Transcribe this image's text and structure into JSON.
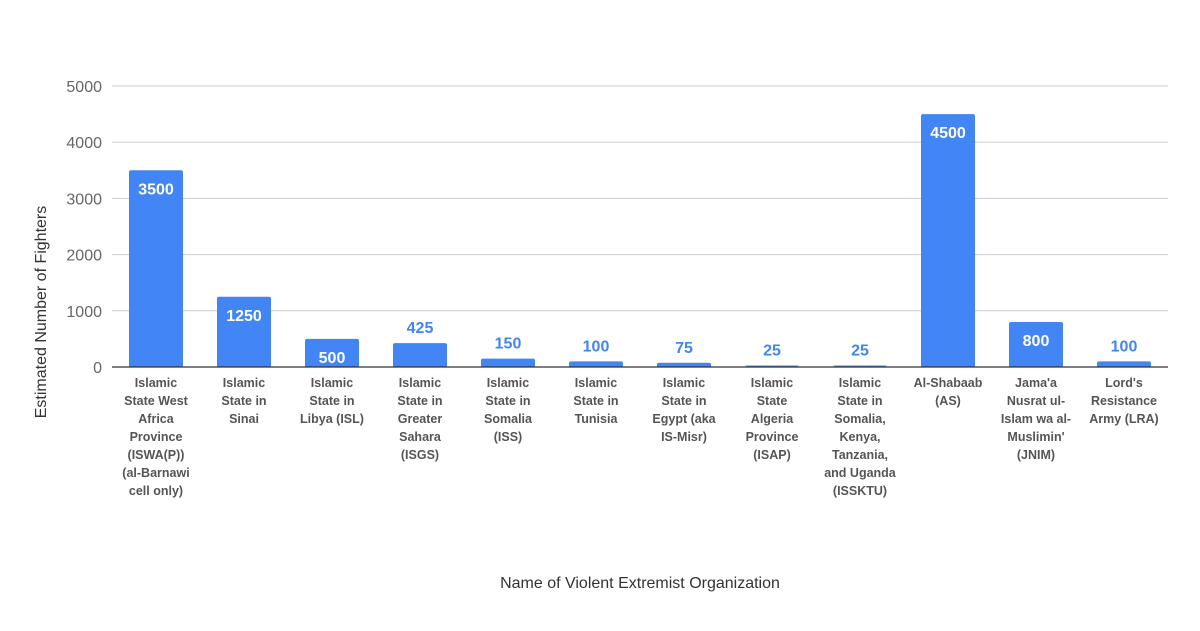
{
  "chart_data": {
    "type": "bar",
    "title": "",
    "xlabel": "Name of Violent Extremist Organization",
    "ylabel": "Estimated Number of Fighters",
    "ylim": [
      0,
      5000
    ],
    "yticks": [
      "0",
      "1000",
      "2000",
      "3000",
      "4000",
      "5000"
    ],
    "grid": true,
    "categories": [
      "Islamic State West Africa Province (ISWA(P)) (al-Barnawi cell only)",
      "Islamic State in Sinai",
      "Islamic State in Libya (ISL)",
      "Islamic State in Greater Sahara (ISGS)",
      "Islamic State in Somalia (ISS)",
      "Islamic State in Tunisia",
      "Islamic State in Egypt (aka IS-Misr)",
      "Islamic State Algeria Province (ISAP)",
      "Islamic State in Somalia, Kenya, Tanzania, and Uganda (ISSKTU)",
      "Al-Shabaab (AS)",
      "Jama'a Nusrat ul-Islam wa al-Muslimin' (JNIM)",
      "Lord's Resistance Army (LRA)"
    ],
    "category_lines": [
      [
        "Islamic",
        "State West",
        "Africa",
        "Province",
        "(ISWA(P))",
        "(al-Barnawi",
        "cell only)"
      ],
      [
        "Islamic",
        "State in",
        "Sinai"
      ],
      [
        "Islamic",
        "State in",
        "Libya (ISL)"
      ],
      [
        "Islamic",
        "State in",
        "Greater",
        "Sahara",
        "(ISGS)"
      ],
      [
        "Islamic",
        "State in",
        "Somalia",
        "(ISS)"
      ],
      [
        "Islamic",
        "State in",
        "Tunisia"
      ],
      [
        "Islamic",
        "State in",
        "Egypt (aka",
        "IS-Misr)"
      ],
      [
        "Islamic",
        "State",
        "Algeria",
        "Province",
        "(ISAP)"
      ],
      [
        "Islamic",
        "State in",
        "Somalia,",
        "Kenya,",
        "Tanzania,",
        "and Uganda",
        "(ISSKTU)"
      ],
      [
        "Al-Shabaab",
        "(AS)"
      ],
      [
        "Jama'a",
        "Nusrat ul-",
        "Islam wa al-",
        "Muslimin'",
        "(JNIM)"
      ],
      [
        "Lord's",
        "Resistance",
        "Army (LRA)"
      ]
    ],
    "values": [
      3500,
      1250,
      500,
      425,
      150,
      100,
      75,
      25,
      25,
      4500,
      800,
      100
    ],
    "value_labels": [
      "3500",
      "1250",
      "500",
      "425",
      "150",
      "100",
      "75",
      "25",
      "25",
      "4500",
      "800",
      "100"
    ],
    "bar_color": "#4285f4",
    "label_inside_color": "#ffffff",
    "label_outside_color": "#4285f4",
    "gridline_color": "#cccccc",
    "axis_color": "#333333"
  }
}
